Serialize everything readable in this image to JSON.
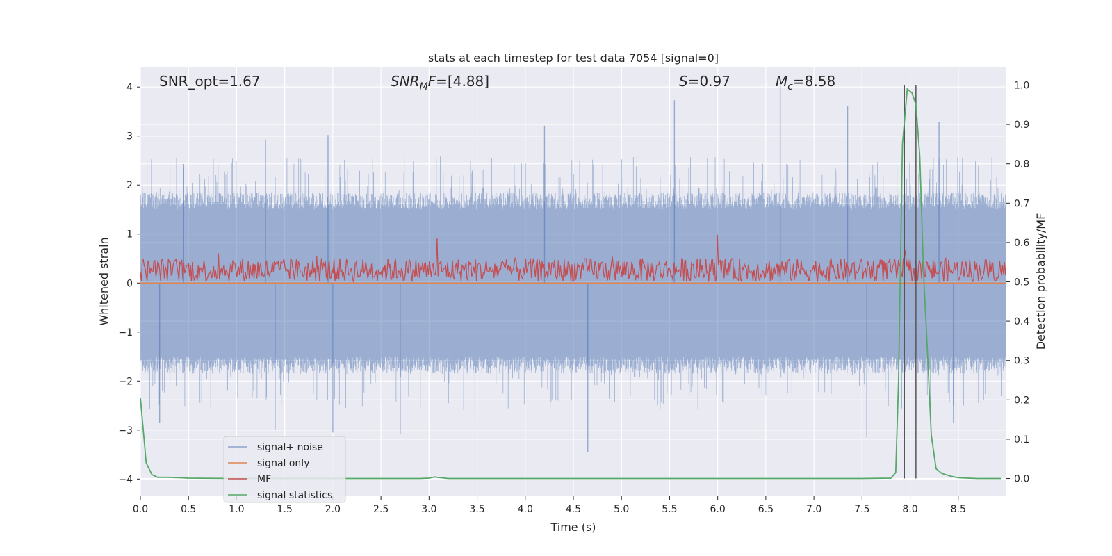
{
  "chart_data": {
    "type": "line",
    "title": "stats at each timestep for test data 7054 [signal=0]",
    "xlabel": "Time (s)",
    "ylabel": "Whitened strain",
    "ylabel_right": "Detection probability/MF",
    "xlim": [
      0.0,
      9.0
    ],
    "ylim": [
      -4.35,
      4.4
    ],
    "ylim_right": [
      -0.045,
      1.045
    ],
    "x_ticks": [
      "0.0",
      "0.5",
      "1.0",
      "1.5",
      "2.0",
      "2.5",
      "3.0",
      "3.5",
      "4.0",
      "4.5",
      "5.0",
      "5.5",
      "6.0",
      "6.5",
      "7.0",
      "7.5",
      "8.0",
      "8.5"
    ],
    "y_ticks": [
      "−4",
      "−3",
      "−2",
      "−1",
      "0",
      "1",
      "2",
      "3",
      "4"
    ],
    "y_ticks_right": [
      "0.0",
      "0.1",
      "0.2",
      "0.3",
      "0.4",
      "0.5",
      "0.6",
      "0.7",
      "0.8",
      "0.9",
      "1.0"
    ],
    "grid": true,
    "legend_position": "lower-left",
    "annotations": [
      {
        "parts": [
          {
            "t": "SNR_opt=1.67",
            "s": "normal"
          }
        ]
      },
      {
        "parts": [
          {
            "t": "SNR",
            "s": "italic"
          },
          {
            "t": "M",
            "s": "italic-sub"
          },
          {
            "t": "F",
            "s": "italic"
          },
          {
            "t": "=[4.88]",
            "s": "normal"
          }
        ]
      },
      {
        "parts": [
          {
            "t": "S",
            "s": "italic"
          },
          {
            "t": "=0.97",
            "s": "normal"
          }
        ]
      },
      {
        "parts": [
          {
            "t": "M",
            "s": "italic"
          },
          {
            "t": "c",
            "s": "italic-sub"
          },
          {
            "t": "=8.58",
            "s": "normal"
          }
        ]
      }
    ],
    "series": [
      {
        "name": "signal+ noise",
        "color": "#4c72b0",
        "axis": "left",
        "style": "dense-noise",
        "envelope_peaks": [
          {
            "x": 0.45,
            "y": 2.43
          },
          {
            "x": 1.3,
            "y": 2.93
          },
          {
            "x": 1.95,
            "y": 3.02
          },
          {
            "x": 4.2,
            "y": 3.21
          },
          {
            "x": 5.55,
            "y": 3.73
          },
          {
            "x": 6.65,
            "y": 4.02
          },
          {
            "x": 7.35,
            "y": 3.62
          },
          {
            "x": 8.3,
            "y": 3.29
          }
        ],
        "envelope_troughs": [
          {
            "x": 0.2,
            "y": -2.85
          },
          {
            "x": 1.4,
            "y": -3.0
          },
          {
            "x": 2.0,
            "y": -3.05
          },
          {
            "x": 2.7,
            "y": -3.08
          },
          {
            "x": 4.65,
            "y": -3.45
          },
          {
            "x": 7.55,
            "y": -3.15
          },
          {
            "x": 8.45,
            "y": -2.85
          }
        ]
      },
      {
        "name": "signal only",
        "color": "#dd8452",
        "axis": "left",
        "x": [
          0.0,
          9.0
        ],
        "y": [
          0.0,
          0.0
        ]
      },
      {
        "name": "MF",
        "color": "#c44e52",
        "axis": "right",
        "style": "noisy-band",
        "band": [
          0.5,
          0.56
        ],
        "peaks": [
          {
            "x": 3.08,
            "y": 0.61
          },
          {
            "x": 6.0,
            "y": 0.62
          },
          {
            "x": 7.95,
            "y": 0.58
          }
        ]
      },
      {
        "name": "signal statistics",
        "color": "#55a868",
        "axis": "right",
        "x": [
          0.0,
          0.06,
          0.12,
          0.18,
          0.3,
          0.5,
          1.0,
          2.0,
          2.9,
          3.0,
          3.06,
          3.12,
          3.2,
          3.5,
          4.0,
          5.0,
          6.0,
          7.0,
          7.5,
          7.8,
          7.85,
          7.88,
          7.92,
          7.97,
          8.02,
          8.06,
          8.1,
          8.14,
          8.18,
          8.22,
          8.27,
          8.33,
          8.42,
          8.5,
          8.6,
          8.7,
          8.95
        ],
        "y": [
          0.205,
          0.04,
          0.01,
          0.003,
          0.003,
          0.001,
          0.0,
          0.0,
          0.0,
          0.001,
          0.004,
          0.002,
          0.0,
          0.0,
          0.0,
          0.0,
          0.0,
          0.0,
          0.0,
          0.001,
          0.015,
          0.25,
          0.85,
          0.99,
          0.98,
          0.95,
          0.82,
          0.52,
          0.32,
          0.11,
          0.025,
          0.013,
          0.006,
          0.002,
          0.001,
          0.0,
          0.0
        ]
      }
    ],
    "vlines": [
      {
        "x": 7.94,
        "color": "#555555"
      },
      {
        "x": 8.06,
        "color": "#555555"
      }
    ]
  }
}
